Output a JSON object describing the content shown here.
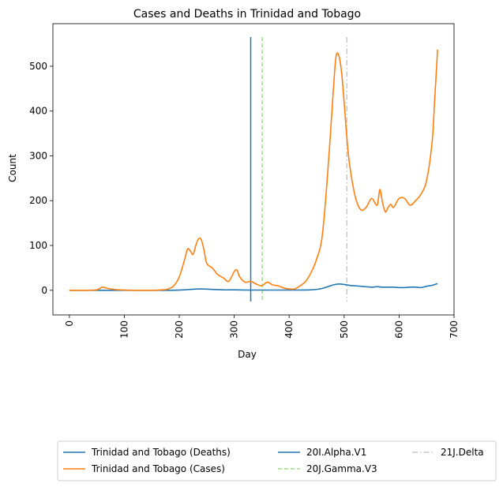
{
  "chart_data": {
    "type": "line",
    "title": "Cases and Deaths in Trinidad and Tobago",
    "xlabel": "Day",
    "ylabel": "Count",
    "xlim": [
      -30,
      700
    ],
    "ylim": [
      -55,
      595
    ],
    "xticks": [
      0,
      100,
      200,
      300,
      400,
      500,
      600,
      700
    ],
    "yticks": [
      0,
      100,
      200,
      300,
      400,
      500
    ],
    "grid": false,
    "legend_placement": "below-chart",
    "series": [
      {
        "name": "Trinidad and Tobago (Deaths)",
        "color": "#1f77b4",
        "x": [
          0,
          50,
          100,
          150,
          180,
          200,
          210,
          220,
          240,
          260,
          280,
          300,
          320,
          340,
          360,
          380,
          400,
          420,
          440,
          450,
          460,
          470,
          480,
          490,
          500,
          510,
          520,
          530,
          540,
          550,
          560,
          570,
          580,
          590,
          600,
          610,
          620,
          630,
          640,
          650,
          660,
          670
        ],
        "y": [
          0,
          0,
          0,
          0,
          0,
          0.5,
          1,
          2,
          3,
          2,
          1,
          1,
          0.5,
          0.5,
          0.5,
          0.5,
          0.5,
          0.5,
          1,
          2,
          4,
          8,
          12,
          14,
          13,
          11,
          10,
          9,
          8,
          7,
          8,
          7,
          7,
          7,
          6,
          6,
          7,
          7,
          6,
          9,
          11,
          15
        ]
      },
      {
        "name": "Trinidad and Tobago (Cases)",
        "color": "#ff7f0e",
        "x": [
          0,
          30,
          50,
          60,
          70,
          90,
          120,
          150,
          170,
          180,
          190,
          200,
          210,
          215,
          220,
          225,
          230,
          235,
          240,
          245,
          250,
          260,
          270,
          280,
          290,
          300,
          305,
          310,
          320,
          330,
          340,
          350,
          360,
          370,
          380,
          390,
          400,
          410,
          420,
          430,
          440,
          450,
          460,
          470,
          480,
          485,
          490,
          495,
          500,
          505,
          510,
          520,
          530,
          540,
          550,
          560,
          565,
          570,
          575,
          580,
          585,
          590,
          600,
          610,
          620,
          630,
          640,
          650,
          660,
          665,
          670
        ],
        "y": [
          0,
          0,
          1,
          7,
          4,
          1,
          0,
          0,
          1,
          3,
          10,
          30,
          70,
          92,
          88,
          80,
          100,
          115,
          113,
          90,
          60,
          50,
          35,
          28,
          20,
          42,
          45,
          30,
          18,
          20,
          14,
          10,
          18,
          12,
          10,
          5,
          3,
          3,
          10,
          20,
          40,
          70,
          120,
          260,
          440,
          520,
          525,
          490,
          420,
          340,
          280,
          210,
          180,
          185,
          205,
          190,
          225,
          195,
          175,
          185,
          192,
          185,
          205,
          205,
          190,
          200,
          215,
          245,
          330,
          430,
          537
        ]
      }
    ],
    "vlines": [
      {
        "name": "20I.Alpha.V1",
        "x": 330,
        "color": "#1f77b4",
        "style": "solid"
      },
      {
        "name": "20J.Gamma.V3",
        "x": 351,
        "color": "#98df8a",
        "style": "dashed"
      },
      {
        "name": "21J.Delta",
        "x": 505,
        "color": "#c7c7c7",
        "style": "dashdot"
      }
    ]
  }
}
